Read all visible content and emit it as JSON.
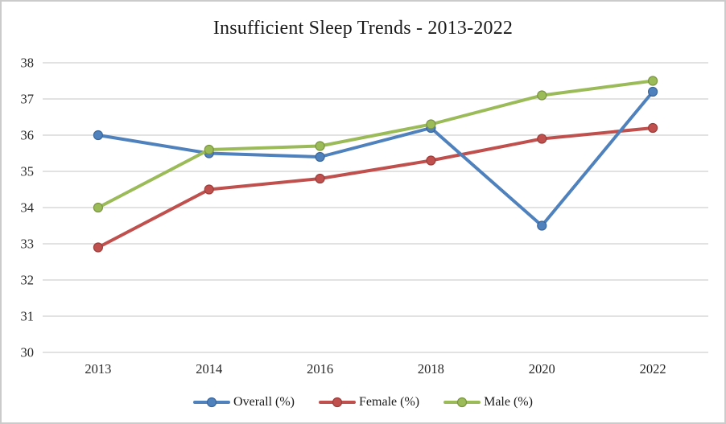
{
  "chart_data": {
    "type": "line",
    "title": "Insufficient Sleep Trends - 2013-2022",
    "x": [
      "2013",
      "2014",
      "2016",
      "2018",
      "2020",
      "2022"
    ],
    "series": [
      {
        "name": "Overall (%)",
        "values": [
          36.0,
          35.5,
          35.4,
          36.2,
          33.5,
          37.2
        ],
        "color": "#4F81BD",
        "marker_edge": "#3A679C"
      },
      {
        "name": "Female (%)",
        "values": [
          32.9,
          34.5,
          34.8,
          35.3,
          35.9,
          36.2
        ],
        "color": "#C0504D",
        "marker_edge": "#9A3E3B"
      },
      {
        "name": "Male (%)",
        "values": [
          34.0,
          35.6,
          35.7,
          36.3,
          37.1,
          37.5
        ],
        "color": "#9BBB59",
        "marker_edge": "#7A9440"
      }
    ],
    "ylim": [
      30,
      38
    ],
    "ytick_step": 1,
    "yticks": [
      "30",
      "31",
      "32",
      "33",
      "34",
      "35",
      "36",
      "37",
      "38"
    ],
    "xlabel": "",
    "ylabel": "",
    "grid": true,
    "gridline_color": "#d9d9d9",
    "legend_position": "bottom",
    "draw_order": [
      1,
      0,
      2
    ],
    "line_width": 4,
    "marker_radius": 5.5
  }
}
